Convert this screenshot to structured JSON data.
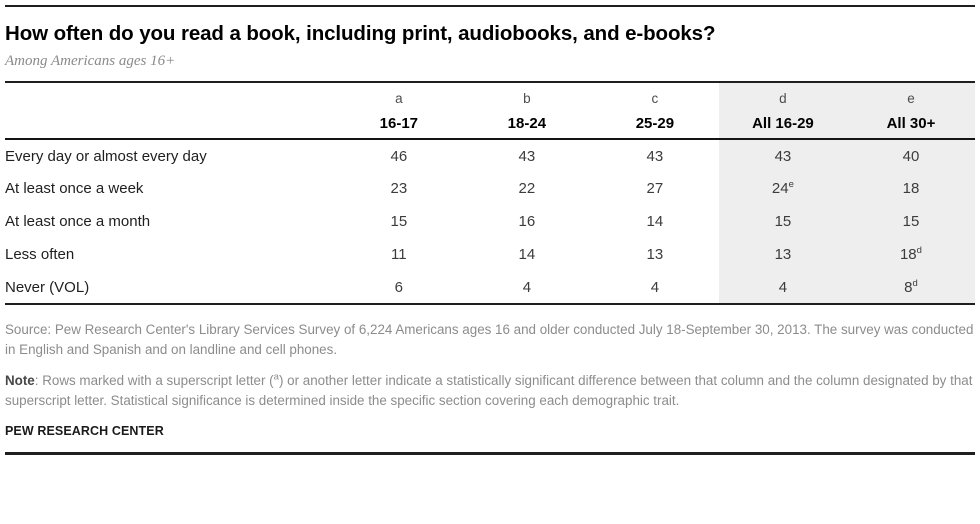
{
  "chart_data": {
    "type": "table",
    "title": "How often do you read a book, including print, audiobooks, and e-books?",
    "subtitle": "Among Americans ages 16+",
    "column_letters": [
      "a",
      "b",
      "c",
      "d",
      "e"
    ],
    "columns": [
      "16-17",
      "18-24",
      "25-29",
      "All 16-29",
      "All 30+"
    ],
    "highlight_column_indexes": [
      3,
      4
    ],
    "rows": [
      {
        "label": "Every day or almost every day",
        "cells": [
          {
            "v": 46
          },
          {
            "v": 43
          },
          {
            "v": 43
          },
          {
            "v": 43
          },
          {
            "v": 40
          }
        ]
      },
      {
        "label": "At least once a week",
        "cells": [
          {
            "v": 23
          },
          {
            "v": 22
          },
          {
            "v": 27
          },
          {
            "v": 24,
            "sup": "e"
          },
          {
            "v": 18
          }
        ]
      },
      {
        "label": "At least once a month",
        "cells": [
          {
            "v": 15
          },
          {
            "v": 16
          },
          {
            "v": 14
          },
          {
            "v": 15
          },
          {
            "v": 15
          }
        ]
      },
      {
        "label": "Less often",
        "cells": [
          {
            "v": 11
          },
          {
            "v": 14
          },
          {
            "v": 13
          },
          {
            "v": 13
          },
          {
            "v": 18,
            "sup": "d"
          }
        ]
      },
      {
        "label": "Never (VOL)",
        "cells": [
          {
            "v": 6
          },
          {
            "v": 4
          },
          {
            "v": 4
          },
          {
            "v": 4
          },
          {
            "v": 8,
            "sup": "d"
          }
        ]
      }
    ]
  },
  "source_text": "Source: Pew Research Center's Library Services Survey of 6,224 Americans ages 16 and older conducted July 18-September 30, 2013. The survey was conducted in English and Spanish and on landline and cell phones.",
  "note": {
    "label": "Note",
    "before_sup": ": Rows marked with a superscript letter (",
    "sup": "a",
    "after_sup": ") or another letter indicate a statistically significant difference between that column and the column designated by that superscript letter. Statistical significance is determined inside the specific section covering each demographic trait."
  },
  "footer_text": "PEW RESEARCH CENTER",
  "colors": {
    "highlight_bg": "#eeeeee",
    "rule": "#1f1f1f",
    "title_text": "#000000",
    "body_text": "#3c3c3c",
    "muted_text": "#8c8c8c"
  }
}
